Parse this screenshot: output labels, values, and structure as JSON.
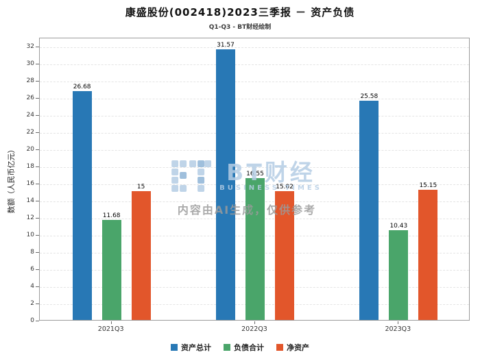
{
  "watermark": {
    "brand": "BT财经",
    "brand_sub": "BUSINESS TIMES",
    "disclaimer": "内容由AI生成，仅供参考"
  },
  "chart_data": {
    "type": "bar",
    "title": "康盛股份(002418)2023三季报 － 资产负债",
    "subtitle": "Q1-Q3 - BT财经绘制",
    "categories": [
      "2021Q3",
      "2022Q3",
      "2023Q3"
    ],
    "series": [
      {
        "name": "资产总计",
        "color": "#2878b5",
        "values": [
          26.68,
          31.57,
          25.58
        ]
      },
      {
        "name": "负债合计",
        "color": "#4aa56a",
        "values": [
          11.68,
          16.55,
          10.43
        ]
      },
      {
        "name": "净资产",
        "color": "#e2562b",
        "values": [
          15,
          15.02,
          15.15
        ]
      }
    ],
    "xlabel": "",
    "ylabel": "数额（人民币亿元）",
    "ylim": [
      0,
      33
    ],
    "yticks": [
      0,
      2,
      4,
      6,
      8,
      10,
      12,
      14,
      16,
      18,
      20,
      22,
      24,
      26,
      28,
      30,
      32
    ],
    "grid": "horizontal-dashed",
    "legend_position": "bottom"
  }
}
